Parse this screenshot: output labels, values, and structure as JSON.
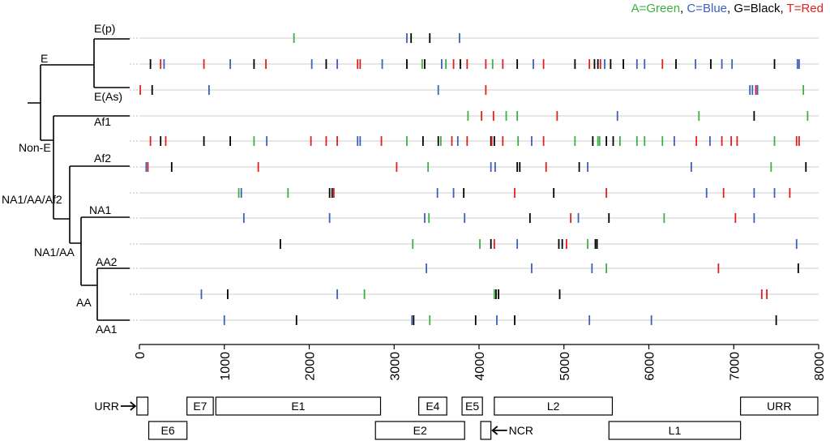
{
  "legend": {
    "entries": [
      {
        "text": "A=Green",
        "color": "#3cb043"
      },
      {
        "text": "C=Blue",
        "color": "#3f5fbf"
      },
      {
        "text": "G=Black",
        "color": "#000000"
      },
      {
        "text": "T=Red",
        "color": "#e02020"
      }
    ],
    "separator": ", "
  },
  "colors": {
    "A": "#3cb043",
    "C": "#3f5fbf",
    "G": "#000000",
    "T": "#e02020",
    "row_line": "#cccccc"
  },
  "tree_labels": {
    "Ep": "E(p)",
    "E": "E",
    "EAs": "E(As)",
    "NonE": "Non-E",
    "Af1": "Af1",
    "Af2": "Af2",
    "NA1AAAf2": "NA1/AA/Af2",
    "NA1": "NA1",
    "NA1AA": "NA1/AA",
    "AA2": "AA2",
    "AA": "AA",
    "AA1": "AA1"
  },
  "chart_data": {
    "type": "scatter",
    "title": "",
    "xlabel": "",
    "ylabel": "",
    "xlim": [
      0,
      8000
    ],
    "x_ticks": [
      0,
      1000,
      2000,
      3000,
      4000,
      5000,
      6000,
      7000,
      8000
    ],
    "rows": [
      {
        "label": "E(p)",
        "marks": [
          [
            1820,
            "A"
          ],
          [
            3150,
            "C"
          ],
          [
            3200,
            "G"
          ],
          [
            3420,
            "G"
          ],
          [
            3770,
            "C"
          ]
        ]
      },
      {
        "label": "",
        "marks": [
          [
            130,
            "G"
          ],
          [
            250,
            "T"
          ],
          [
            290,
            "C"
          ],
          [
            760,
            "T"
          ],
          [
            1070,
            "C"
          ],
          [
            1350,
            "G"
          ],
          [
            1490,
            "T"
          ],
          [
            2030,
            "C"
          ],
          [
            2200,
            "G"
          ],
          [
            2330,
            "C"
          ],
          [
            2570,
            "T"
          ],
          [
            2600,
            "T"
          ],
          [
            2860,
            "C"
          ],
          [
            3150,
            "G"
          ],
          [
            3330,
            "A"
          ],
          [
            3360,
            "G"
          ],
          [
            3560,
            "C"
          ],
          [
            3610,
            "A"
          ],
          [
            3700,
            "T"
          ],
          [
            3780,
            "G"
          ],
          [
            3860,
            "T"
          ],
          [
            4080,
            "T"
          ],
          [
            4160,
            "A"
          ],
          [
            4280,
            "T"
          ],
          [
            4450,
            "G"
          ],
          [
            4640,
            "C"
          ],
          [
            4760,
            "T"
          ],
          [
            5130,
            "G"
          ],
          [
            5300,
            "T"
          ],
          [
            5360,
            "G"
          ],
          [
            5400,
            "G"
          ],
          [
            5430,
            "T"
          ],
          [
            5480,
            "C"
          ],
          [
            5550,
            "G"
          ],
          [
            5700,
            "G"
          ],
          [
            5860,
            "C"
          ],
          [
            5950,
            "C"
          ],
          [
            6160,
            "T"
          ],
          [
            6320,
            "G"
          ],
          [
            6550,
            "C"
          ],
          [
            6730,
            "G"
          ],
          [
            6860,
            "C"
          ],
          [
            6980,
            "C"
          ],
          [
            7480,
            "G"
          ],
          [
            7750,
            "C"
          ],
          [
            7770,
            "C"
          ]
        ]
      },
      {
        "label": "E(As)",
        "marks": [
          [
            10,
            "T"
          ],
          [
            150,
            "G"
          ],
          [
            820,
            "C"
          ],
          [
            3520,
            "C"
          ],
          [
            4080,
            "T"
          ],
          [
            7190,
            "C"
          ],
          [
            7220,
            "C"
          ],
          [
            7260,
            "T"
          ],
          [
            7280,
            "C"
          ],
          [
            7820,
            "A"
          ]
        ]
      },
      {
        "label": "Af1",
        "marks": [
          [
            3870,
            "A"
          ],
          [
            4030,
            "T"
          ],
          [
            4170,
            "T"
          ],
          [
            4320,
            "A"
          ],
          [
            4450,
            "A"
          ],
          [
            4920,
            "T"
          ],
          [
            5630,
            "C"
          ],
          [
            6590,
            "A"
          ],
          [
            7240,
            "G"
          ],
          [
            7870,
            "A"
          ]
        ]
      },
      {
        "label": "",
        "marks": [
          [
            130,
            "T"
          ],
          [
            250,
            "G"
          ],
          [
            310,
            "T"
          ],
          [
            760,
            "G"
          ],
          [
            1070,
            "G"
          ],
          [
            1350,
            "A"
          ],
          [
            1500,
            "C"
          ],
          [
            2020,
            "T"
          ],
          [
            2200,
            "T"
          ],
          [
            2330,
            "T"
          ],
          [
            2570,
            "C"
          ],
          [
            2600,
            "C"
          ],
          [
            2850,
            "T"
          ],
          [
            3150,
            "A"
          ],
          [
            3340,
            "G"
          ],
          [
            3520,
            "G"
          ],
          [
            3550,
            "A"
          ],
          [
            3680,
            "T"
          ],
          [
            3750,
            "C"
          ],
          [
            3860,
            "T"
          ],
          [
            4140,
            "G"
          ],
          [
            4180,
            "G"
          ],
          [
            4150,
            "T"
          ],
          [
            4280,
            "T"
          ],
          [
            4460,
            "A"
          ],
          [
            4620,
            "C"
          ],
          [
            4760,
            "T"
          ],
          [
            5130,
            "A"
          ],
          [
            5340,
            "G"
          ],
          [
            5400,
            "A"
          ],
          [
            5420,
            "A"
          ],
          [
            5500,
            "G"
          ],
          [
            5580,
            "G"
          ],
          [
            5660,
            "A"
          ],
          [
            5860,
            "A"
          ],
          [
            5950,
            "A"
          ],
          [
            6160,
            "A"
          ],
          [
            6300,
            "C"
          ],
          [
            6560,
            "T"
          ],
          [
            6720,
            "C"
          ],
          [
            6860,
            "T"
          ],
          [
            6970,
            "T"
          ],
          [
            7040,
            "T"
          ],
          [
            7480,
            "A"
          ],
          [
            7740,
            "T"
          ],
          [
            7770,
            "T"
          ]
        ]
      },
      {
        "label": "Af2",
        "marks": [
          [
            80,
            "C"
          ],
          [
            100,
            "T"
          ],
          [
            380,
            "G"
          ],
          [
            1400,
            "T"
          ],
          [
            3030,
            "T"
          ],
          [
            3400,
            "A"
          ],
          [
            4140,
            "C"
          ],
          [
            4190,
            "C"
          ],
          [
            4450,
            "G"
          ],
          [
            4480,
            "G"
          ],
          [
            4790,
            "T"
          ],
          [
            5180,
            "G"
          ],
          [
            5280,
            "C"
          ],
          [
            6500,
            "C"
          ],
          [
            7440,
            "A"
          ],
          [
            7850,
            "G"
          ]
        ]
      },
      {
        "label": "NA1/AA/Af2",
        "marks": [
          [
            1170,
            "A"
          ],
          [
            1200,
            "C"
          ],
          [
            1750,
            "A"
          ],
          [
            2240,
            "G"
          ],
          [
            2270,
            "G"
          ],
          [
            2290,
            "T"
          ],
          [
            3510,
            "C"
          ],
          [
            3700,
            "C"
          ],
          [
            3820,
            "G"
          ],
          [
            4420,
            "T"
          ],
          [
            4880,
            "G"
          ],
          [
            5500,
            "T"
          ],
          [
            6680,
            "C"
          ],
          [
            6880,
            "T"
          ],
          [
            7240,
            "C"
          ],
          [
            7480,
            "C"
          ],
          [
            7660,
            "T"
          ]
        ]
      },
      {
        "label": "NA1",
        "marks": [
          [
            1230,
            "C"
          ],
          [
            2240,
            "C"
          ],
          [
            3360,
            "C"
          ],
          [
            3410,
            "A"
          ],
          [
            3830,
            "C"
          ],
          [
            4600,
            "G"
          ],
          [
            5080,
            "T"
          ],
          [
            5170,
            "C"
          ],
          [
            5530,
            "G"
          ],
          [
            6180,
            "A"
          ],
          [
            7020,
            "T"
          ],
          [
            7240,
            "C"
          ]
        ]
      },
      {
        "label": "",
        "marks": [
          [
            1660,
            "G"
          ],
          [
            3220,
            "A"
          ],
          [
            4010,
            "A"
          ],
          [
            4140,
            "G"
          ],
          [
            4180,
            "T"
          ],
          [
            4450,
            "C"
          ],
          [
            4940,
            "G"
          ],
          [
            4980,
            "G"
          ],
          [
            5030,
            "T"
          ],
          [
            5280,
            "A"
          ],
          [
            5370,
            "G"
          ],
          [
            5390,
            "G"
          ],
          [
            7740,
            "C"
          ]
        ]
      },
      {
        "label": "AA2",
        "marks": [
          [
            3380,
            "C"
          ],
          [
            4620,
            "C"
          ],
          [
            5330,
            "C"
          ],
          [
            5500,
            "A"
          ],
          [
            6820,
            "T"
          ],
          [
            7760,
            "G"
          ]
        ]
      },
      {
        "label": "",
        "marks": [
          [
            730,
            "C"
          ],
          [
            1040,
            "G"
          ],
          [
            2330,
            "C"
          ],
          [
            2650,
            "A"
          ],
          [
            4180,
            "A"
          ],
          [
            4200,
            "G"
          ],
          [
            4230,
            "G"
          ],
          [
            4950,
            "G"
          ],
          [
            7330,
            "T"
          ],
          [
            7390,
            "T"
          ]
        ]
      },
      {
        "label": "AA1",
        "marks": [
          [
            1000,
            "C"
          ],
          [
            1850,
            "G"
          ],
          [
            3210,
            "C"
          ],
          [
            3230,
            "G"
          ],
          [
            3420,
            "A"
          ],
          [
            3960,
            "G"
          ],
          [
            4210,
            "C"
          ],
          [
            4420,
            "G"
          ],
          [
            5300,
            "C"
          ],
          [
            6030,
            "C"
          ],
          [
            7500,
            "G"
          ]
        ]
      }
    ],
    "genome_map": {
      "top": [
        {
          "name": "",
          "start": -30,
          "end": 100
        },
        {
          "name": "E7",
          "start": 560,
          "end": 870
        },
        {
          "name": "E1",
          "start": 900,
          "end": 2840
        },
        {
          "name": "E4",
          "start": 3290,
          "end": 3620
        },
        {
          "name": "E5",
          "start": 3800,
          "end": 4040
        },
        {
          "name": "L2",
          "start": 4180,
          "end": 5570
        },
        {
          "name": "URR",
          "start": 7080,
          "end": 7990
        }
      ],
      "bottom": [
        {
          "name": "E6",
          "start": 110,
          "end": 560
        },
        {
          "name": "E2",
          "start": 2780,
          "end": 3830
        },
        {
          "name": "",
          "start": 4020,
          "end": 4140
        },
        {
          "name": "L1",
          "start": 5530,
          "end": 7080
        }
      ],
      "arrows": [
        {
          "label": "URR",
          "x": -30,
          "side": "left",
          "track": "top"
        },
        {
          "label": "NCR",
          "x": 4140,
          "side": "right",
          "track": "bottom"
        }
      ]
    }
  }
}
